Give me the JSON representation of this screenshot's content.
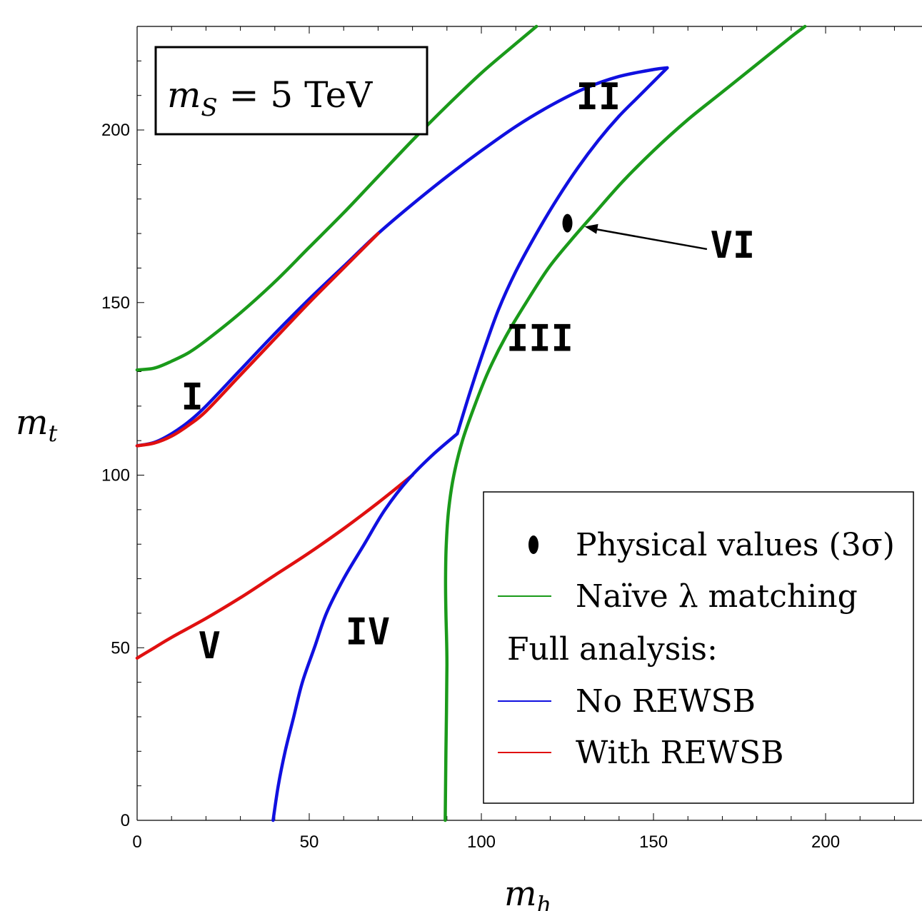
{
  "chart_data": {
    "type": "line",
    "title": "m_S = 5 TeV",
    "title_parts": {
      "var": "m",
      "sub": "S",
      "rest": " = 5 TeV"
    },
    "xlabel": {
      "var": "m",
      "sub": "h"
    },
    "ylabel": {
      "var": "m",
      "sub": "t"
    },
    "xlim": [
      0,
      228
    ],
    "ylim": [
      0,
      230
    ],
    "xticks": [
      0,
      50,
      100,
      150,
      200
    ],
    "yticks": [
      0,
      50,
      100,
      150,
      200
    ],
    "xtick_labels": [
      "0",
      "50",
      "100",
      "150",
      "200"
    ],
    "ytick_labels": [
      "0",
      "50",
      "100",
      "150",
      "200"
    ],
    "minor_step": 10,
    "grid": false,
    "legend_position": "lower-right",
    "colors": {
      "green": "#1a9a1a",
      "blue": "#1010e0",
      "red": "#e01010"
    },
    "series": [
      {
        "key": "naive_left",
        "color": "green",
        "points": [
          [
            0,
            130.5
          ],
          [
            5,
            131
          ],
          [
            10,
            133
          ],
          [
            15,
            135.5
          ],
          [
            20,
            139
          ],
          [
            30,
            147
          ],
          [
            40,
            156
          ],
          [
            50,
            166
          ],
          [
            60,
            176
          ],
          [
            70,
            186.5
          ],
          [
            80,
            197
          ],
          [
            90,
            207
          ],
          [
            100,
            216.5
          ],
          [
            110,
            225
          ],
          [
            116,
            230
          ]
        ]
      },
      {
        "key": "naive_right",
        "color": "green",
        "points": [
          [
            89.5,
            0
          ],
          [
            89.7,
            20
          ],
          [
            90,
            45
          ],
          [
            89.7,
            60
          ],
          [
            89.6,
            70
          ],
          [
            89.8,
            80
          ],
          [
            90.5,
            90
          ],
          [
            92,
            100
          ],
          [
            94.5,
            110
          ],
          [
            98,
            120
          ],
          [
            102,
            130
          ],
          [
            107,
            140
          ],
          [
            113,
            150
          ],
          [
            119.5,
            160
          ],
          [
            126,
            168
          ],
          [
            133,
            176
          ],
          [
            141,
            185
          ],
          [
            150,
            194
          ],
          [
            160,
            203
          ],
          [
            170,
            211
          ],
          [
            180,
            219
          ],
          [
            190,
            227
          ],
          [
            194,
            230
          ]
        ]
      },
      {
        "key": "red_lower",
        "color": "red",
        "points": [
          [
            0,
            47
          ],
          [
            5,
            50
          ],
          [
            10,
            53
          ],
          [
            20,
            58.5
          ],
          [
            30,
            64.5
          ],
          [
            40,
            71
          ],
          [
            50,
            77.5
          ],
          [
            60,
            84.5
          ],
          [
            70,
            92
          ],
          [
            80,
            100
          ]
        ]
      },
      {
        "key": "blue_lower",
        "color": "blue",
        "points": [
          [
            39.5,
            0
          ],
          [
            41,
            10
          ],
          [
            43,
            20
          ],
          [
            45.5,
            30
          ],
          [
            48,
            40
          ],
          [
            51.5,
            50
          ],
          [
            55,
            60
          ],
          [
            60,
            70
          ],
          [
            66,
            80
          ],
          [
            72,
            90
          ],
          [
            79,
            99
          ],
          [
            86,
            106
          ],
          [
            93,
            112
          ]
        ]
      },
      {
        "key": "blue_upper_branch",
        "color": "blue",
        "points": [
          [
            93,
            112
          ],
          [
            97,
            125
          ],
          [
            101,
            137
          ],
          [
            105,
            148
          ],
          [
            110,
            159
          ],
          [
            116,
            170
          ],
          [
            122,
            180
          ],
          [
            128,
            189
          ],
          [
            134,
            197
          ],
          [
            140,
            204
          ],
          [
            146,
            210
          ],
          [
            150,
            214
          ],
          [
            154,
            218
          ]
        ]
      },
      {
        "key": "blue_upper",
        "color": "blue",
        "points": [
          [
            0,
            108.5
          ],
          [
            5,
            109.5
          ],
          [
            10,
            112
          ],
          [
            15,
            115.5
          ],
          [
            20,
            120
          ],
          [
            30,
            130.5
          ],
          [
            40,
            141
          ],
          [
            50,
            151
          ],
          [
            60,
            160.5
          ],
          [
            70,
            170
          ],
          [
            80,
            178.5
          ],
          [
            90,
            186.5
          ],
          [
            100,
            194
          ],
          [
            110,
            201
          ],
          [
            120,
            207
          ],
          [
            130,
            212
          ],
          [
            140,
            215.5
          ],
          [
            150,
            217.5
          ],
          [
            154,
            218
          ]
        ]
      },
      {
        "key": "red_upper",
        "color": "red",
        "points": [
          [
            0,
            108.5
          ],
          [
            5,
            109.3
          ],
          [
            10,
            111.3
          ],
          [
            15,
            114.5
          ],
          [
            20,
            118.5
          ],
          [
            30,
            129
          ],
          [
            40,
            139.5
          ],
          [
            50,
            150
          ],
          [
            60,
            160
          ],
          [
            70,
            170
          ]
        ]
      }
    ],
    "physical_point": {
      "x": 125,
      "y": 173
    },
    "annotations": [
      {
        "text": "I",
        "x": 16,
        "y": 119
      },
      {
        "text": "II",
        "x": 134,
        "y": 206
      },
      {
        "text": "III",
        "x": 117,
        "y": 136
      },
      {
        "text": "IV",
        "x": 67,
        "y": 51
      },
      {
        "text": "V",
        "x": 21,
        "y": 47
      },
      {
        "text": "VI",
        "x": 173,
        "y": 163,
        "arrow_to": [
          130,
          172
        ]
      }
    ],
    "legend": {
      "physical": "Physical values (3σ)",
      "naive": "Naïve λ matching",
      "full": "Full analysis:",
      "no_rewsb": "No REWSB",
      "with_rewsb": "With REWSB"
    }
  }
}
